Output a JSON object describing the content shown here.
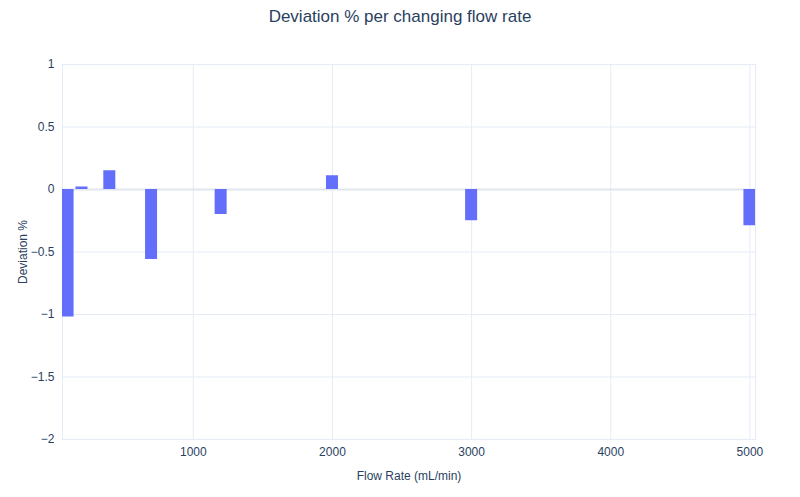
{
  "chart_data": {
    "type": "bar",
    "title": "Deviation % per changing flow rate",
    "x_label": "Flow Rate (mL/min)",
    "y_label": "Deviation %",
    "x": [
      100,
      200,
      400,
      700,
      1200,
      2000,
      3000,
      5000
    ],
    "values": [
      -1.02,
      0.02,
      0.15,
      -0.56,
      -0.2,
      0.11,
      -0.25,
      -0.29
    ],
    "color": "#636efa",
    "xlim": [
      60,
      5040
    ],
    "xticks": [
      1000,
      2000,
      3000,
      4000,
      5000
    ],
    "ylim": [
      -2,
      1
    ],
    "yticks": [
      {
        "value": -2,
        "label": "−2"
      },
      {
        "value": -1.5,
        "label": "−1.5"
      },
      {
        "value": -1,
        "label": "−1"
      },
      {
        "value": -0.5,
        "label": "−0.5"
      },
      0,
      0.5,
      1
    ],
    "grid": true
  }
}
